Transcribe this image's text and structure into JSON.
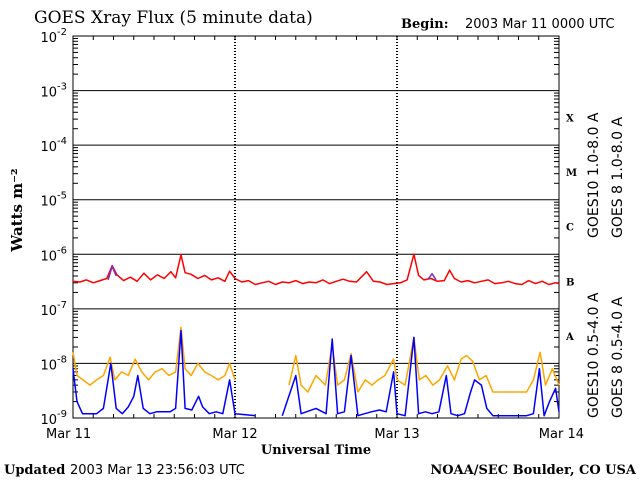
{
  "header": {
    "title": "GOES Xray Flux (5 minute data)",
    "begin_label": "Begin:",
    "begin_value": "2003 Mar 11 0000 UTC"
  },
  "footer": {
    "updated_label": "Updated",
    "updated_value": "2003 Mar 13 23:56:03 UTC",
    "credit": "NOAA/SEC Boulder, CO USA"
  },
  "colors": {
    "goes8_long": "#ff0000",
    "goes10_long": "#7b2fbe",
    "goes10_short": "#ffa500",
    "goes8_short": "#0000ff"
  },
  "chart_data": {
    "type": "line",
    "title": "GOES Xray Flux (5 minute data)",
    "xlabel": "Universal Time",
    "ylabel": "Watts m⁻²",
    "yscale": "log",
    "ylim": [
      1e-09,
      0.01
    ],
    "xlim": [
      0,
      72
    ],
    "x_unit": "hours since 2003 Mar 11 0000 UTC",
    "x_ticks": [
      {
        "x": 0,
        "label": "Mar 11"
      },
      {
        "x": 24,
        "label": "Mar 12"
      },
      {
        "x": 48,
        "label": "Mar 13"
      },
      {
        "x": 72,
        "label": "Mar 14"
      }
    ],
    "y_ticks": [
      {
        "base": "10",
        "exp": "-2",
        "value": 0.01
      },
      {
        "base": "10",
        "exp": "-3",
        "value": 0.001
      },
      {
        "base": "10",
        "exp": "-4",
        "value": 0.0001
      },
      {
        "base": "10",
        "exp": "-5",
        "value": 1e-05
      },
      {
        "base": "10",
        "exp": "-6",
        "value": 1e-06
      },
      {
        "base": "10",
        "exp": "-7",
        "value": 1e-07
      },
      {
        "base": "10",
        "exp": "-8",
        "value": 1e-08
      },
      {
        "base": "10",
        "exp": "-9",
        "value": 1e-09
      }
    ],
    "flare_classes": [
      {
        "label": "X",
        "value": 0.00032
      },
      {
        "label": "M",
        "value": 3.2e-05
      },
      {
        "label": "C",
        "value": 3.2e-06
      },
      {
        "label": "B",
        "value": 3.2e-07
      },
      {
        "label": "A",
        "value": 3.2e-08
      }
    ],
    "series": [
      {
        "name": "GOES 8 1.0-8.0 A",
        "color": "#ff0000",
        "points": [
          [
            0,
            3.2e-07
          ],
          [
            1,
            3.1e-07
          ],
          [
            2,
            3.4e-07
          ],
          [
            3,
            3e-07
          ],
          [
            4,
            3.3e-07
          ],
          [
            5,
            3.6e-07
          ],
          [
            5.8,
            6.2e-07
          ],
          [
            6.5,
            4.2e-07
          ],
          [
            7.5,
            3.3e-07
          ],
          [
            8.5,
            3.8e-07
          ],
          [
            9.5,
            3.2e-07
          ],
          [
            10.5,
            4.5e-07
          ],
          [
            11.5,
            3.4e-07
          ],
          [
            12.5,
            4.2e-07
          ],
          [
            13.5,
            3.6e-07
          ],
          [
            14.5,
            4.8e-07
          ],
          [
            15.2,
            3.7e-07
          ],
          [
            16,
            9.8e-07
          ],
          [
            16.6,
            4.6e-07
          ],
          [
            17.5,
            4.3e-07
          ],
          [
            18.5,
            3.6e-07
          ],
          [
            19.5,
            4.1e-07
          ],
          [
            20.5,
            3.4e-07
          ],
          [
            21.5,
            3.7e-07
          ],
          [
            22.5,
            3.2e-07
          ],
          [
            23.2,
            4.9e-07
          ],
          [
            24,
            3.6e-07
          ],
          [
            25,
            3.1e-07
          ],
          [
            26,
            3.3e-07
          ],
          [
            27,
            2.8e-07
          ],
          [
            28,
            3e-07
          ],
          [
            29,
            3.2e-07
          ],
          [
            30,
            2.8e-07
          ],
          [
            31,
            3.1e-07
          ],
          [
            32,
            3e-07
          ],
          [
            33,
            3.3e-07
          ],
          [
            34,
            2.9e-07
          ],
          [
            35,
            3.1e-07
          ],
          [
            36,
            3e-07
          ],
          [
            37,
            3.4e-07
          ],
          [
            38,
            2.9e-07
          ],
          [
            39,
            3.2e-07
          ],
          [
            40,
            3.5e-07
          ],
          [
            41,
            3.2e-07
          ],
          [
            42,
            3.1e-07
          ],
          [
            43.5,
            4.8e-07
          ],
          [
            44.5,
            3.2e-07
          ],
          [
            45.5,
            3.1e-07
          ],
          [
            46.5,
            2.8e-07
          ],
          [
            47.5,
            2.9e-07
          ],
          [
            48.5,
            3e-07
          ],
          [
            49.5,
            3.4e-07
          ],
          [
            50.5,
            1e-06
          ],
          [
            51.2,
            4.1e-07
          ],
          [
            52,
            3.4e-07
          ],
          [
            53,
            3.6e-07
          ],
          [
            54,
            3.2e-07
          ],
          [
            55,
            3.3e-07
          ],
          [
            55.8,
            5.1e-07
          ],
          [
            56.5,
            3.6e-07
          ],
          [
            57.5,
            3.1e-07
          ],
          [
            58.5,
            3.3e-07
          ],
          [
            59.5,
            3e-07
          ],
          [
            60.5,
            3.2e-07
          ],
          [
            61.5,
            3.4e-07
          ],
          [
            62.5,
            2.9e-07
          ],
          [
            63.5,
            3e-07
          ],
          [
            64.5,
            3.2e-07
          ],
          [
            65.5,
            2.9e-07
          ],
          [
            66.5,
            2.8e-07
          ],
          [
            67.5,
            3.3e-07
          ],
          [
            68.5,
            2.9e-07
          ],
          [
            69.5,
            3.2e-07
          ],
          [
            70.5,
            2.8e-07
          ],
          [
            71.5,
            3e-07
          ],
          [
            72,
            2.9e-07
          ]
        ]
      },
      {
        "name": "GOES10 1.0-8.0 A",
        "color": "#7b2fbe",
        "points": [
          [
            5.2,
            3.4e-07
          ],
          [
            5.8,
            6e-07
          ],
          [
            6.4,
            4e-07
          ],
          [
            52.6,
            3.5e-07
          ],
          [
            53.2,
            4.4e-07
          ],
          [
            53.8,
            3.4e-07
          ]
        ]
      },
      {
        "name": "GOES10 0.5-4.0 A",
        "color": "#ffa500",
        "points": [
          [
            0,
            1.6e-08
          ],
          [
            0.6,
            6e-09
          ],
          [
            1.5,
            5e-09
          ],
          [
            2.5,
            4e-09
          ],
          [
            3.5,
            5e-09
          ],
          [
            4.5,
            6e-09
          ],
          [
            5.5,
            1.3e-08
          ],
          [
            6.2,
            5e-09
          ],
          [
            7.2,
            7e-09
          ],
          [
            8.2,
            6e-09
          ],
          [
            9.2,
            1.2e-08
          ],
          [
            10.2,
            7e-09
          ],
          [
            11.2,
            5e-09
          ],
          [
            12.2,
            7e-09
          ],
          [
            13.2,
            8e-09
          ],
          [
            14.2,
            6e-09
          ],
          [
            15.2,
            7e-09
          ],
          [
            16,
            4.6e-08
          ],
          [
            16.6,
            8e-09
          ],
          [
            17.5,
            6e-09
          ],
          [
            18.5,
            1e-08
          ],
          [
            19.5,
            7e-09
          ],
          [
            20.5,
            6e-09
          ],
          [
            21.5,
            5e-09
          ],
          [
            22.5,
            6e-09
          ],
          [
            23.2,
            1e-08
          ],
          [
            24,
            5e-09
          ],
          [
            32,
            4e-09
          ],
          [
            33,
            1.4e-08
          ],
          [
            33.8,
            4e-09
          ],
          [
            34.8,
            3e-09
          ],
          [
            36,
            6e-09
          ],
          [
            37.4,
            4e-09
          ],
          [
            38.4,
            2.2e-08
          ],
          [
            39.2,
            4e-09
          ],
          [
            40.2,
            5e-09
          ],
          [
            41.2,
            1.5e-08
          ],
          [
            42.2,
            3e-09
          ],
          [
            43.3,
            5e-09
          ],
          [
            44.3,
            4e-09
          ],
          [
            45.2,
            5e-09
          ],
          [
            46.2,
            6e-09
          ],
          [
            47.5,
            1.2e-08
          ],
          [
            48,
            5e-09
          ],
          [
            49.2,
            4e-09
          ],
          [
            50.5,
            3e-08
          ],
          [
            51.3,
            5e-09
          ],
          [
            52.3,
            6e-09
          ],
          [
            53.3,
            4e-09
          ],
          [
            54.3,
            5e-09
          ],
          [
            55.5,
            9e-09
          ],
          [
            56.5,
            5e-09
          ],
          [
            57.5,
            1.2e-08
          ],
          [
            58.3,
            1.4e-08
          ],
          [
            59.2,
            1.1e-08
          ],
          [
            60.2,
            5e-09
          ],
          [
            61.2,
            6e-09
          ],
          [
            62.2,
            3e-09
          ],
          [
            63.2,
            3e-09
          ],
          [
            64.2,
            3e-09
          ],
          [
            65.2,
            3e-09
          ],
          [
            66.2,
            3e-09
          ],
          [
            67.2,
            3e-09
          ],
          [
            68.2,
            5e-09
          ],
          [
            69.2,
            1.6e-08
          ],
          [
            70,
            4e-09
          ],
          [
            71,
            8e-09
          ],
          [
            72,
            4e-09
          ]
        ]
      },
      {
        "name": "GOES 8 0.5-4.0 A",
        "color": "#0000ff",
        "points": [
          [
            0,
            8e-09
          ],
          [
            0.6,
            2e-09
          ],
          [
            1.4,
            1.2e-09
          ],
          [
            2.5,
            1.2e-09
          ],
          [
            3.5,
            1.2e-09
          ],
          [
            4.5,
            1.5e-09
          ],
          [
            5.6,
            1e-08
          ],
          [
            6.4,
            1.5e-09
          ],
          [
            7.3,
            1.2e-09
          ],
          [
            8.2,
            1.6e-09
          ],
          [
            9,
            2.5e-09
          ],
          [
            9.6,
            6e-09
          ],
          [
            10.4,
            1.5e-09
          ],
          [
            11.4,
            1.2e-09
          ],
          [
            12.4,
            1.3e-09
          ],
          [
            13.4,
            1.3e-09
          ],
          [
            14.4,
            1.3e-09
          ],
          [
            15.2,
            1.5e-09
          ],
          [
            16,
            4e-08
          ],
          [
            16.6,
            1.5e-09
          ],
          [
            17.6,
            1.4e-09
          ],
          [
            18.6,
            2.5e-09
          ],
          [
            19.2,
            1.6e-09
          ],
          [
            20.2,
            1.2e-09
          ],
          [
            21.2,
            1.3e-09
          ],
          [
            22.2,
            1.2e-09
          ],
          [
            23.2,
            5e-09
          ],
          [
            24,
            1.2e-09
          ],
          [
            27,
            1.1e-09
          ],
          [
            31,
            1.1e-09
          ],
          [
            33,
            6e-09
          ],
          [
            33.8,
            1.2e-09
          ],
          [
            36,
            1.5e-09
          ],
          [
            37.5,
            1.2e-09
          ],
          [
            38.4,
            2.8e-08
          ],
          [
            39.2,
            1.2e-09
          ],
          [
            40.2,
            1.3e-09
          ],
          [
            41.2,
            1.4e-08
          ],
          [
            42.2,
            1.1e-09
          ],
          [
            43.2,
            1.2e-09
          ],
          [
            44.2,
            1.3e-09
          ],
          [
            45.4,
            1.4e-09
          ],
          [
            46.4,
            1.3e-09
          ],
          [
            47.5,
            7e-09
          ],
          [
            48,
            1.2e-09
          ],
          [
            49.2,
            1.1e-09
          ],
          [
            50.5,
            3e-08
          ],
          [
            51.2,
            1.2e-09
          ],
          [
            52.2,
            1.3e-09
          ],
          [
            53.2,
            1.2e-09
          ],
          [
            54.2,
            1.3e-09
          ],
          [
            55.3,
            6e-09
          ],
          [
            56,
            1.2e-09
          ],
          [
            57,
            1.1e-09
          ],
          [
            58,
            1.2e-09
          ],
          [
            58.9,
            3e-09
          ],
          [
            59.5,
            5e-09
          ],
          [
            60.5,
            4e-09
          ],
          [
            61.3,
            1.5e-09
          ],
          [
            62.2,
            1.1e-09
          ],
          [
            63.2,
            1.1e-09
          ],
          [
            64.2,
            1.1e-09
          ],
          [
            65.2,
            1.1e-09
          ],
          [
            66.2,
            1.1e-09
          ],
          [
            67.2,
            1.1e-09
          ],
          [
            68.2,
            1.2e-09
          ],
          [
            69.1,
            8e-09
          ],
          [
            69.8,
            1.1e-09
          ],
          [
            70.6,
            2e-09
          ],
          [
            71.5,
            3.5e-09
          ],
          [
            72,
            1.3e-09
          ]
        ]
      }
    ]
  }
}
